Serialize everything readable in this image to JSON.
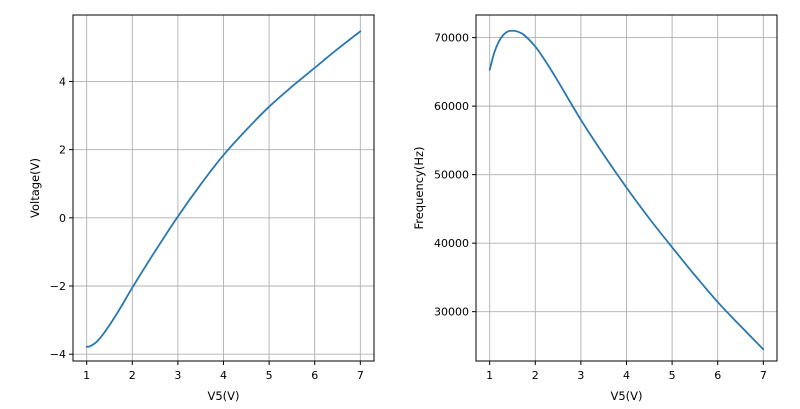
{
  "colors": {
    "series": "#2878b0",
    "grid": "#b0b0b0",
    "axes": "#000000"
  },
  "chart_data": [
    {
      "type": "line",
      "title": "",
      "xlabel": "V5(V)",
      "ylabel": "Voltage(V)",
      "xlim": [
        0.7,
        7.3
      ],
      "ylim": [
        -4.2,
        5.95
      ],
      "xticks": [
        1,
        2,
        3,
        4,
        5,
        6,
        7
      ],
      "yticks": [
        -4,
        -2,
        0,
        2,
        4
      ],
      "xtick_labels": [
        "1",
        "2",
        "3",
        "4",
        "5",
        "6",
        "7"
      ],
      "ytick_labels": [
        "−4",
        "−2",
        "0",
        "2",
        "4"
      ],
      "grid": true,
      "series": [
        {
          "x": [
            1.0,
            1.05,
            1.1,
            1.2,
            1.3,
            1.5,
            1.75,
            2.0,
            2.5,
            3.0,
            3.5,
            4.0,
            4.5,
            5.0,
            5.5,
            6.0,
            6.5,
            7.0
          ],
          "values": [
            -3.78,
            -3.78,
            -3.75,
            -3.66,
            -3.52,
            -3.15,
            -2.62,
            -2.05,
            -0.98,
            0.04,
            0.98,
            1.84,
            2.58,
            3.26,
            3.85,
            4.4,
            4.95,
            5.47
          ]
        }
      ]
    },
    {
      "type": "line",
      "title": "",
      "xlabel": "V5(V)",
      "ylabel": "Frequency(Hz)",
      "xlim": [
        0.7,
        7.3
      ],
      "ylim": [
        22800,
        73300
      ],
      "xticks": [
        1,
        2,
        3,
        4,
        5,
        6,
        7
      ],
      "yticks": [
        30000,
        40000,
        50000,
        60000,
        70000
      ],
      "xtick_labels": [
        "1",
        "2",
        "3",
        "4",
        "5",
        "6",
        "7"
      ],
      "ytick_labels": [
        "30000",
        "40000",
        "50000",
        "60000",
        "70000"
      ],
      "grid": true,
      "series": [
        {
          "x": [
            1.0,
            1.1,
            1.2,
            1.3,
            1.4,
            1.5,
            1.6,
            1.75,
            2.0,
            2.25,
            2.5,
            3.0,
            3.5,
            4.0,
            4.5,
            5.0,
            5.5,
            6.0,
            6.5,
            7.0
          ],
          "values": [
            65300,
            67800,
            69400,
            70400,
            70900,
            71000,
            70900,
            70400,
            68700,
            66300,
            63600,
            58000,
            52900,
            48100,
            43600,
            39400,
            35300,
            31400,
            27900,
            24500
          ]
        }
      ]
    }
  ]
}
